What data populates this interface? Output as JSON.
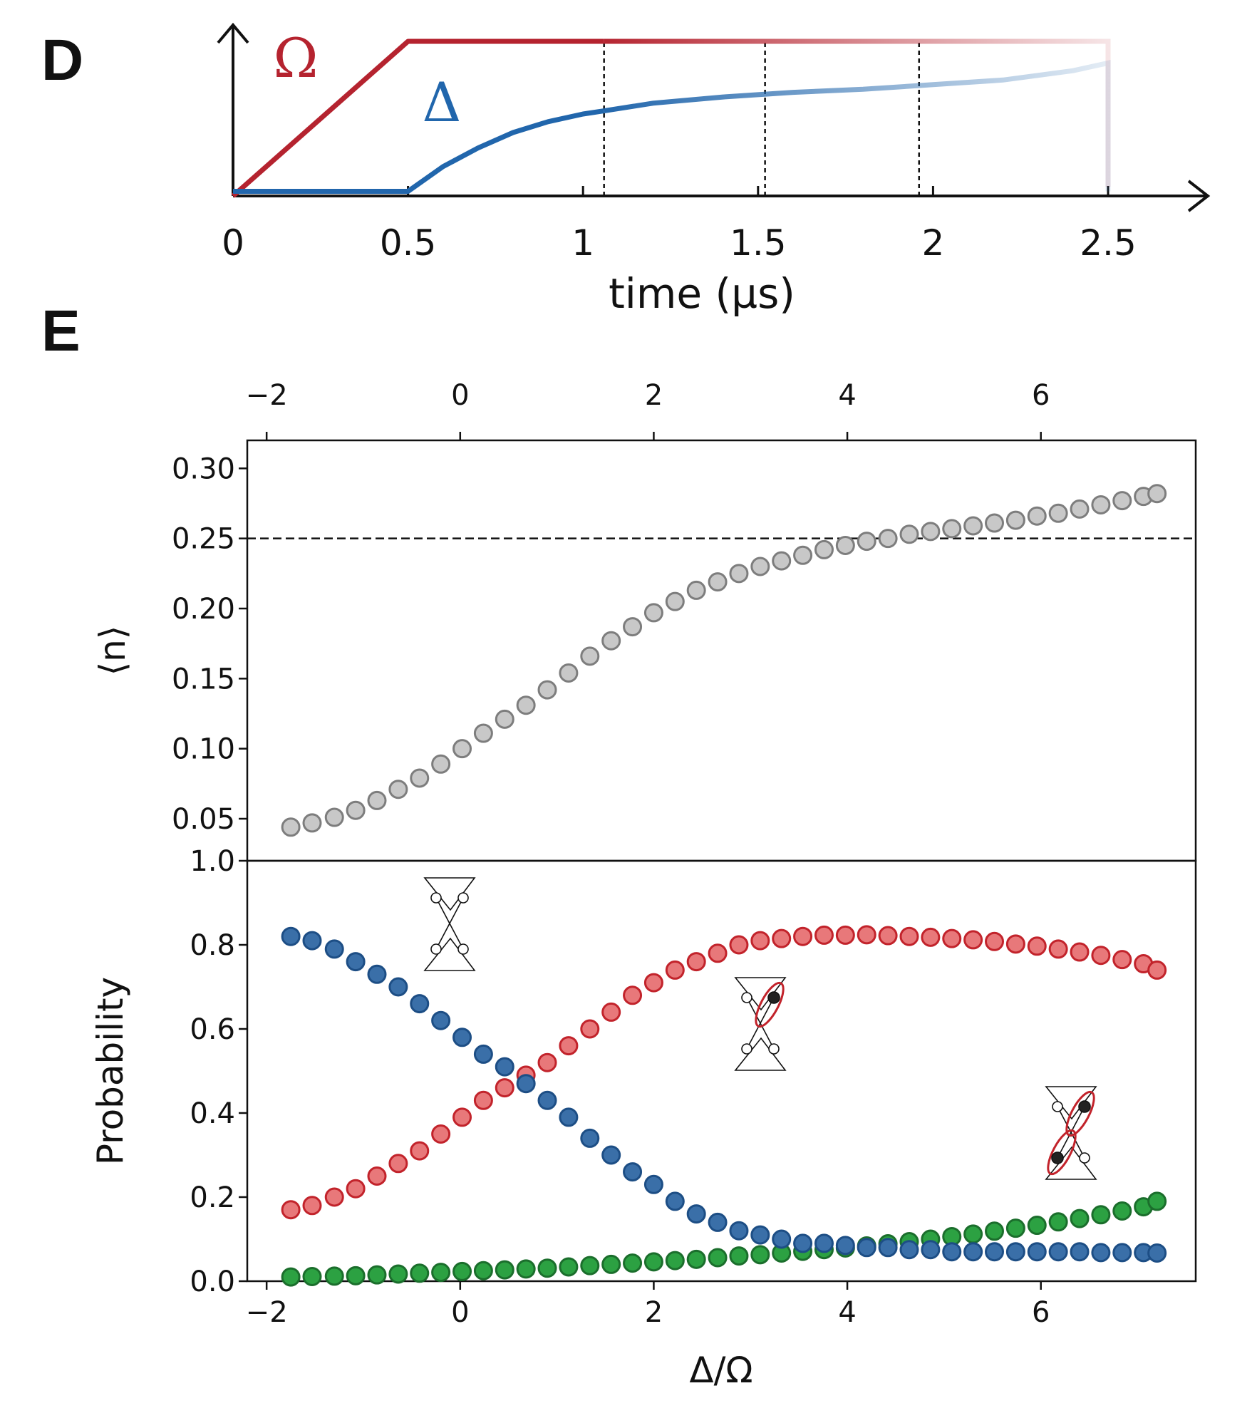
{
  "panels": {
    "d_letter": "D",
    "e_letter": "E"
  },
  "colors": {
    "omega": "#b5232f",
    "delta": "#2166ac",
    "gray_fill": "#c8c8c8",
    "gray_edge": "#7d7d7d",
    "blue_fill": "#3a6fa8",
    "blue_edge": "#1d4e85",
    "red_fill": "#e8787a",
    "red_edge": "#c2232b",
    "green_fill": "#2ca142",
    "green_edge": "#1b6e2c"
  },
  "chart_data": [
    {
      "id": "D",
      "type": "line",
      "xlabel": "time (µs)",
      "xticks": [
        "0",
        "0.5",
        "1",
        "1.5",
        "2",
        "2.5"
      ],
      "xlim": [
        0,
        2.5
      ],
      "ylim": [
        0,
        1
      ],
      "series": [
        {
          "name": "Ω",
          "x": [
            0,
            0.5,
            2.5
          ],
          "y": [
            0,
            1,
            1
          ]
        },
        {
          "name": "Δ",
          "x": [
            0,
            0.5,
            0.6,
            0.7,
            0.8,
            0.9,
            1.0,
            1.06,
            1.2,
            1.4,
            1.6,
            1.8,
            2.0,
            2.2,
            2.4,
            2.5
          ],
          "y": [
            0.03,
            0.03,
            0.19,
            0.31,
            0.41,
            0.48,
            0.53,
            0.55,
            0.6,
            0.64,
            0.67,
            0.69,
            0.72,
            0.75,
            0.81,
            0.86
          ]
        }
      ],
      "vlines": [
        1.06,
        1.52,
        1.96
      ]
    },
    {
      "id": "E-top",
      "type": "scatter",
      "xlim": [
        -2.2,
        7.6
      ],
      "ylim": [
        0.02,
        0.32
      ],
      "xticks": [
        "−2",
        "0",
        "2",
        "4",
        "6"
      ],
      "yticks": [
        "0.05",
        "0.10",
        "0.15",
        "0.20",
        "0.25",
        "0.30"
      ],
      "ylabel": "⟨n⟩",
      "hline": 0.25,
      "series": [
        {
          "x": [
            -1.75,
            -1.53,
            -1.3,
            -1.08,
            -0.86,
            -0.64,
            -0.42,
            -0.2,
            0.02,
            0.24,
            0.46,
            0.68,
            0.9,
            1.12,
            1.34,
            1.56,
            1.78,
            2.0,
            2.22,
            2.44,
            2.66,
            2.88,
            3.1,
            3.32,
            3.54,
            3.76,
            3.98,
            4.2,
            4.42,
            4.64,
            4.86,
            5.08,
            5.3,
            5.52,
            5.74,
            5.96,
            6.18,
            6.4,
            6.62,
            6.84,
            7.06,
            7.2
          ],
          "y": [
            0.044,
            0.047,
            0.051,
            0.056,
            0.063,
            0.071,
            0.079,
            0.089,
            0.1,
            0.111,
            0.121,
            0.131,
            0.142,
            0.154,
            0.166,
            0.177,
            0.187,
            0.197,
            0.205,
            0.213,
            0.219,
            0.225,
            0.23,
            0.234,
            0.238,
            0.242,
            0.245,
            0.248,
            0.25,
            0.253,
            0.255,
            0.257,
            0.259,
            0.261,
            0.263,
            0.266,
            0.268,
            0.271,
            0.274,
            0.277,
            0.28,
            0.282
          ]
        }
      ]
    },
    {
      "id": "E-bottom",
      "type": "scatter",
      "xlim": [
        -2.2,
        7.6
      ],
      "ylim": [
        0.0,
        1.0
      ],
      "xticks": [
        "−2",
        "0",
        "2",
        "4",
        "6"
      ],
      "yticks": [
        "0.0",
        "0.2",
        "0.4",
        "0.6",
        "0.8",
        "1.0"
      ],
      "xlabel": "Δ/Ω",
      "ylabel": "Probability",
      "series": [
        {
          "color": "blue",
          "x": [
            -1.75,
            -1.53,
            -1.3,
            -1.08,
            -0.86,
            -0.64,
            -0.42,
            -0.2,
            0.02,
            0.24,
            0.46,
            0.68,
            0.9,
            1.12,
            1.34,
            1.56,
            1.78,
            2.0,
            2.22,
            2.44,
            2.66,
            2.88,
            3.1,
            3.32,
            3.54,
            3.76,
            3.98,
            4.2,
            4.42,
            4.64,
            4.86,
            5.08,
            5.3,
            5.52,
            5.74,
            5.96,
            6.18,
            6.4,
            6.62,
            6.84,
            7.06,
            7.2
          ],
          "y": [
            0.82,
            0.81,
            0.79,
            0.76,
            0.73,
            0.7,
            0.66,
            0.62,
            0.58,
            0.54,
            0.51,
            0.47,
            0.43,
            0.39,
            0.34,
            0.3,
            0.26,
            0.23,
            0.19,
            0.16,
            0.14,
            0.12,
            0.11,
            0.1,
            0.09,
            0.09,
            0.085,
            0.08,
            0.08,
            0.075,
            0.075,
            0.07,
            0.07,
            0.07,
            0.07,
            0.07,
            0.07,
            0.07,
            0.068,
            0.068,
            0.068,
            0.067
          ]
        },
        {
          "color": "red",
          "x": [
            -1.75,
            -1.53,
            -1.3,
            -1.08,
            -0.86,
            -0.64,
            -0.42,
            -0.2,
            0.02,
            0.24,
            0.46,
            0.68,
            0.9,
            1.12,
            1.34,
            1.56,
            1.78,
            2.0,
            2.22,
            2.44,
            2.66,
            2.88,
            3.1,
            3.32,
            3.54,
            3.76,
            3.98,
            4.2,
            4.42,
            4.64,
            4.86,
            5.08,
            5.3,
            5.52,
            5.74,
            5.96,
            6.18,
            6.4,
            6.62,
            6.84,
            7.06,
            7.2
          ],
          "y": [
            0.17,
            0.18,
            0.2,
            0.22,
            0.25,
            0.28,
            0.31,
            0.35,
            0.39,
            0.43,
            0.46,
            0.49,
            0.52,
            0.56,
            0.6,
            0.64,
            0.68,
            0.71,
            0.74,
            0.76,
            0.78,
            0.8,
            0.81,
            0.815,
            0.82,
            0.823,
            0.823,
            0.824,
            0.822,
            0.82,
            0.818,
            0.815,
            0.812,
            0.808,
            0.802,
            0.797,
            0.79,
            0.783,
            0.775,
            0.765,
            0.755,
            0.74
          ]
        },
        {
          "color": "green",
          "x": [
            -1.75,
            -1.53,
            -1.3,
            -1.08,
            -0.86,
            -0.64,
            -0.42,
            -0.2,
            0.02,
            0.24,
            0.46,
            0.68,
            0.9,
            1.12,
            1.34,
            1.56,
            1.78,
            2.0,
            2.22,
            2.44,
            2.66,
            2.88,
            3.1,
            3.32,
            3.54,
            3.76,
            3.98,
            4.2,
            4.42,
            4.64,
            4.86,
            5.08,
            5.3,
            5.52,
            5.74,
            5.96,
            6.18,
            6.4,
            6.62,
            6.84,
            7.06,
            7.2
          ],
          "y": [
            0.01,
            0.011,
            0.012,
            0.013,
            0.015,
            0.017,
            0.019,
            0.021,
            0.023,
            0.025,
            0.027,
            0.029,
            0.031,
            0.034,
            0.037,
            0.04,
            0.043,
            0.046,
            0.049,
            0.052,
            0.056,
            0.06,
            0.063,
            0.067,
            0.071,
            0.075,
            0.079,
            0.084,
            0.089,
            0.094,
            0.1,
            0.106,
            0.112,
            0.119,
            0.126,
            0.133,
            0.141,
            0.149,
            0.158,
            0.167,
            0.177,
            0.19
          ]
        }
      ]
    }
  ]
}
